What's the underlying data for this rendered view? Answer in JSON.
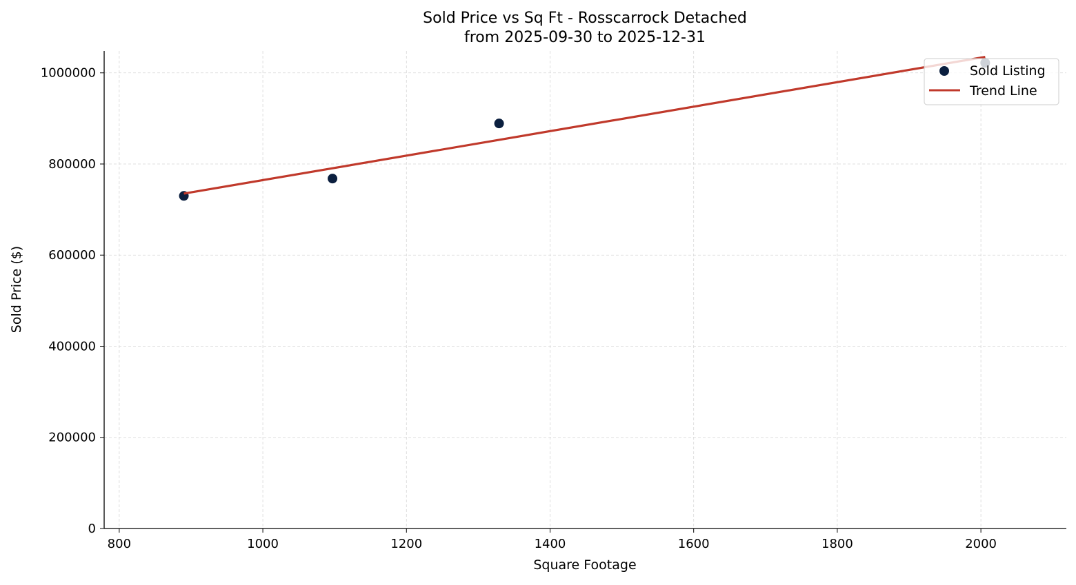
{
  "chart_data": {
    "type": "scatter",
    "title": "Sold Price vs Sq Ft - Rosscarrock Detached",
    "subtitle": "from 2025-09-30 to 2025-12-31",
    "xlabel": "Square Footage",
    "ylabel": "Sold Price ($)",
    "xlim": [
      779,
      2119
    ],
    "ylim": [
      0,
      1048000
    ],
    "xticks": [
      800,
      1000,
      1200,
      1400,
      1600,
      1800,
      2000
    ],
    "yticks": [
      0,
      200000,
      400000,
      600000,
      800000,
      1000000
    ],
    "grid": true,
    "legend_position": "top-right",
    "series": [
      {
        "name": "Sold Listing",
        "kind": "scatter",
        "color": "#0b1f3f",
        "x": [
          890,
          1097,
          1329,
          2006
        ],
        "y": [
          730000,
          768000,
          889000,
          1022000
        ]
      },
      {
        "name": "Trend Line",
        "kind": "line",
        "color": "#c0392b",
        "x": [
          890,
          2006
        ],
        "y": [
          735000,
          1035000
        ]
      }
    ]
  }
}
